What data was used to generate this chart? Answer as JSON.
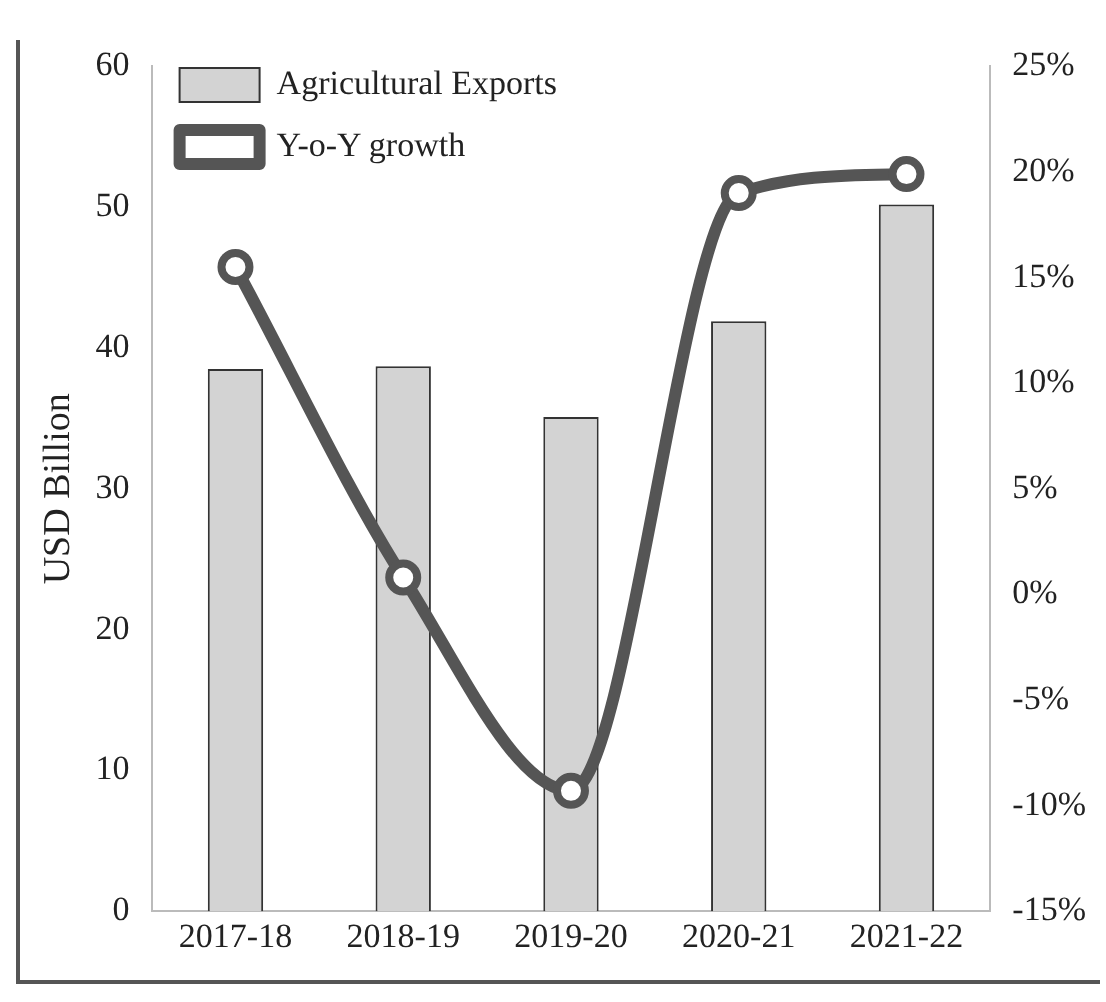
{
  "chart_data": {
    "type": "bar",
    "categories": [
      "2017-18",
      "2018-19",
      "2019-20",
      "2020-21",
      "2021-22"
    ],
    "ylabel": "USD Billion",
    "series": [
      {
        "name": "Agricultural Exports",
        "color": "#d3d3d3",
        "values": [
          38.5,
          38.7,
          35.1,
          41.9,
          50.2
        ]
      },
      {
        "name": "Y-o-Y growth",
        "type": "line",
        "axis": "y2",
        "color": "#555555",
        "values": [
          15.5,
          0.8,
          -9.3,
          19.0,
          19.9
        ]
      }
    ],
    "ylim": [
      0,
      60
    ],
    "yticks": [
      0,
      10,
      20,
      30,
      40,
      50,
      60
    ],
    "y2lim": [
      -15,
      25
    ],
    "y2ticks": [
      {
        "value": -15,
        "label": "-15%"
      },
      {
        "value": -10,
        "label": "-10%"
      },
      {
        "value": -5,
        "label": "-5%"
      },
      {
        "value": 0,
        "label": "0%"
      },
      {
        "value": 5,
        "label": "5%"
      },
      {
        "value": 10,
        "label": "10%"
      },
      {
        "value": 15,
        "label": "15%"
      },
      {
        "value": 20,
        "label": "20%"
      },
      {
        "value": 25,
        "label": "25%"
      }
    ],
    "marker": "circle",
    "legend": "top",
    "grid": false
  }
}
